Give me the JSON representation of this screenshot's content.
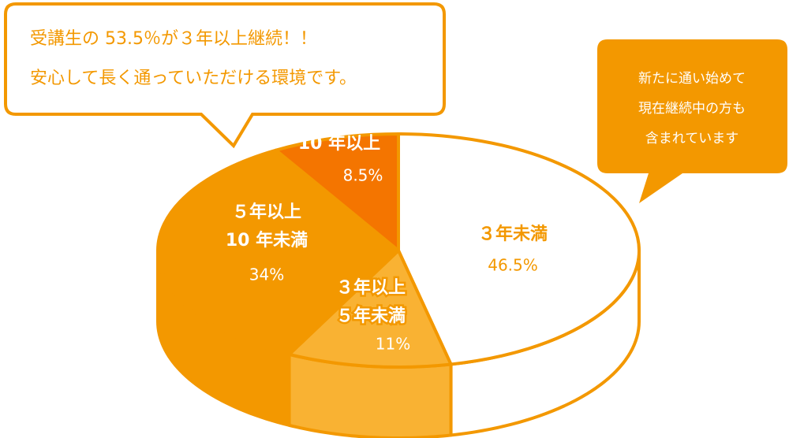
{
  "chart_data": {
    "type": "pie3d",
    "categories": [
      [
        "３年未満"
      ],
      [
        "３年以上",
        "５年未満"
      ],
      [
        "５年以上",
        "10 年未満"
      ],
      [
        "10 年以上"
      ]
    ],
    "values": [
      46.5,
      11,
      34,
      8.5
    ],
    "value_labels": [
      "46.5%",
      "11%",
      "34%",
      "8.5%"
    ],
    "colors": [
      "#ffffff",
      "#f9b233",
      "#f39800",
      "#f47500"
    ],
    "edge_color": "#f39800",
    "annotations": [
      {
        "lines": [
          "受講生の 53.5％が３年以上継続！！",
          "安心して長く通っていただける環境です。"
        ]
      },
      {
        "lines": [
          "新たに通い始めて",
          "現在継続中の方も",
          "含まれています"
        ]
      }
    ]
  }
}
